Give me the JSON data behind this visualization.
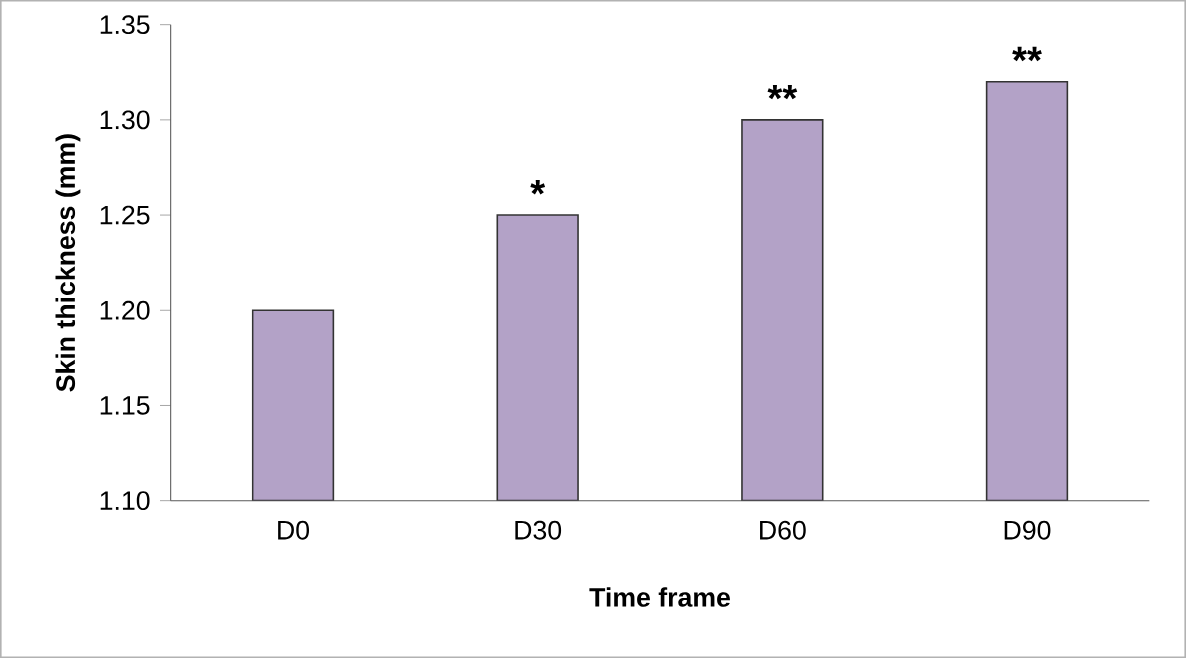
{
  "chart_data": {
    "type": "bar",
    "xlabel": "Time frame",
    "ylabel": "Skin thickness  (mm)",
    "categories": [
      "D0",
      "D30",
      "D60",
      "D90"
    ],
    "values": [
      1.2,
      1.25,
      1.3,
      1.32
    ],
    "color": "#b3a2c7",
    "ylim": [
      1.1,
      1.35
    ],
    "yticks": [
      {
        "value": 1.1,
        "label": "1.10"
      },
      {
        "value": 1.15,
        "label": "1.15"
      },
      {
        "value": 1.2,
        "label": "1.20"
      },
      {
        "value": 1.25,
        "label": "1.25"
      },
      {
        "value": 1.3,
        "label": "1.30"
      },
      {
        "value": 1.35,
        "label": "1.35"
      }
    ],
    "annotations": [
      {
        "text": "*",
        "x": "D30",
        "y": 1.25
      },
      {
        "text": "**",
        "x": "D60",
        "y": 1.3
      },
      {
        "text": "**",
        "x": "D90",
        "y": 1.32
      }
    ]
  }
}
